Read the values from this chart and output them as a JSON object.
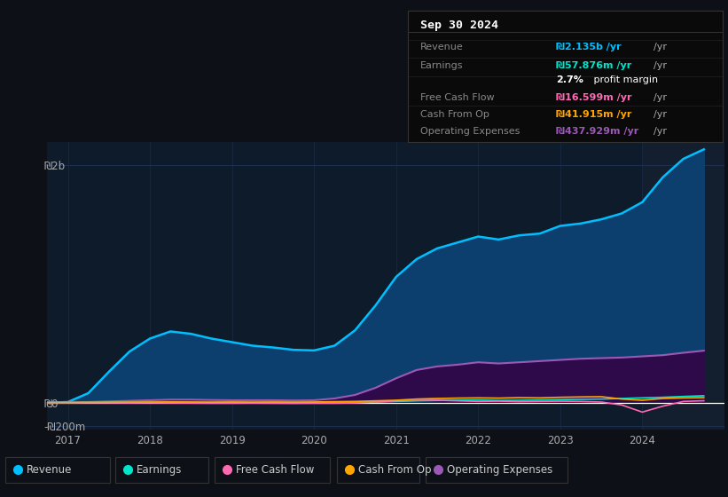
{
  "bg_color": "#0d1117",
  "plot_bg_color": "#0d1b2a",
  "grid_color": "#1e3050",
  "title_box_bg": "#0a0a0a",
  "title_box_border": "#333333",
  "title": "Sep 30 2024",
  "info_rows": [
    {
      "label": "Revenue",
      "value": "₪2.135b /yr",
      "value_color": "#00bfff",
      "sub": null
    },
    {
      "label": "Earnings",
      "value": "₪57.876m /yr",
      "value_color": "#00e5cc",
      "sub": "2.7% profit margin"
    },
    {
      "label": "Free Cash Flow",
      "value": "₪16.599m /yr",
      "value_color": "#ff69b4",
      "sub": null
    },
    {
      "label": "Cash From Op",
      "value": "₪41.915m /yr",
      "value_color": "#ffa500",
      "sub": null
    },
    {
      "label": "Operating Expenses",
      "value": "₪437.929m /yr",
      "value_color": "#9b59b6",
      "sub": null
    }
  ],
  "years": [
    2016.75,
    2017.0,
    2017.25,
    2017.5,
    2017.75,
    2018.0,
    2018.25,
    2018.5,
    2018.75,
    2019.0,
    2019.25,
    2019.5,
    2019.75,
    2020.0,
    2020.25,
    2020.5,
    2020.75,
    2021.0,
    2021.25,
    2021.5,
    2021.75,
    2022.0,
    2022.25,
    2022.5,
    2022.75,
    2023.0,
    2023.25,
    2023.5,
    2023.75,
    2024.0,
    2024.25,
    2024.5,
    2024.75
  ],
  "revenue": [
    0,
    5,
    80,
    260,
    430,
    540,
    600,
    580,
    540,
    510,
    480,
    465,
    445,
    440,
    480,
    610,
    820,
    1060,
    1210,
    1300,
    1350,
    1400,
    1375,
    1410,
    1425,
    1490,
    1510,
    1545,
    1595,
    1690,
    1900,
    2055,
    2135
  ],
  "earnings": [
    0,
    0,
    2,
    3,
    2,
    3,
    2,
    1,
    1,
    2,
    1,
    1,
    1,
    2,
    3,
    4,
    5,
    10,
    15,
    18,
    20,
    22,
    18,
    20,
    22,
    25,
    28,
    30,
    35,
    40,
    45,
    52,
    58
  ],
  "free_cash_flow": [
    0,
    0,
    -1,
    -2,
    -3,
    -2,
    -3,
    -4,
    -5,
    -5,
    -4,
    -5,
    -6,
    -5,
    -5,
    -3,
    5,
    15,
    18,
    20,
    15,
    10,
    12,
    8,
    10,
    12,
    10,
    5,
    -20,
    -80,
    -30,
    10,
    16
  ],
  "cash_from_op": [
    0,
    1,
    2,
    3,
    4,
    5,
    6,
    5,
    4,
    5,
    4,
    5,
    4,
    5,
    8,
    10,
    15,
    20,
    30,
    35,
    38,
    40,
    38,
    42,
    40,
    45,
    48,
    50,
    30,
    20,
    35,
    40,
    42
  ],
  "operating_expenses": [
    0,
    0,
    5,
    10,
    15,
    20,
    25,
    25,
    22,
    20,
    20,
    20,
    18,
    20,
    35,
    65,
    125,
    205,
    275,
    305,
    320,
    340,
    330,
    340,
    350,
    360,
    370,
    375,
    380,
    390,
    400,
    420,
    438
  ],
  "revenue_color": "#00bfff",
  "revenue_fill": "#0d3f6e",
  "earnings_color": "#00e5cc",
  "fcf_color": "#ff69b4",
  "cfo_color": "#ffa500",
  "opex_color": "#9b59b6",
  "opex_fill": "#2e0a4a",
  "ytick_labels": [
    "-₪200m",
    "₪0",
    "₪2b"
  ],
  "ytick_values": [
    -200,
    0,
    2000
  ],
  "xtick_labels": [
    "2017",
    "2018",
    "2019",
    "2020",
    "2021",
    "2022",
    "2023",
    "2024"
  ],
  "xtick_values": [
    2017,
    2018,
    2019,
    2020,
    2021,
    2022,
    2023,
    2024
  ],
  "ylim": [
    -230,
    2200
  ],
  "xlim": [
    2016.75,
    2025.0
  ],
  "highlight_x_start": 2024.0,
  "highlight_color": "#131e2e",
  "zero_line_color": "#ffffff",
  "legend_items": [
    {
      "label": "Revenue",
      "color": "#00bfff"
    },
    {
      "label": "Earnings",
      "color": "#00e5cc"
    },
    {
      "label": "Free Cash Flow",
      "color": "#ff69b4"
    },
    {
      "label": "Cash From Op",
      "color": "#ffa500"
    },
    {
      "label": "Operating Expenses",
      "color": "#9b59b6"
    }
  ]
}
